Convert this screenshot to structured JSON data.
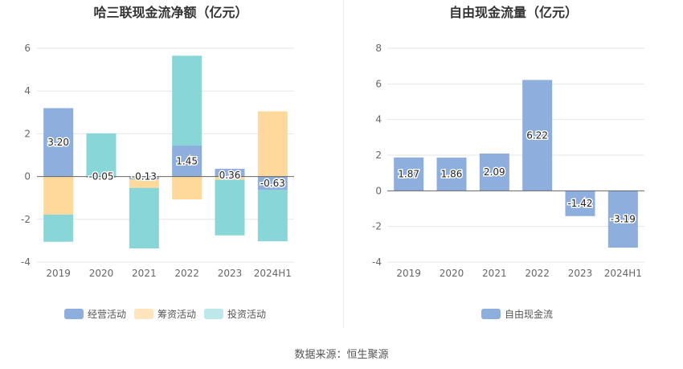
{
  "footer": {
    "source": "数据来源：恒生聚源"
  },
  "chart_data": [
    {
      "type": "bar",
      "stacked": true,
      "title": "哈三联现金流净额（亿元）",
      "categories": [
        "2019",
        "2020",
        "2021",
        "2022",
        "2023",
        "2024H1"
      ],
      "ylim": [
        -4,
        6
      ],
      "yticks": [
        6,
        4,
        2,
        0,
        -2,
        -4
      ],
      "grid": true,
      "legend_position": "bottom",
      "series": [
        {
          "name": "经营活动",
          "color": "#8eaedd",
          "values": [
            3.2,
            -0.05,
            -0.13,
            1.45,
            0.36,
            -0.63
          ],
          "labels": [
            "3.20",
            "-0.05",
            "-0.13",
            "1.45",
            "0.36",
            "-0.63"
          ]
        },
        {
          "name": "筹资活动",
          "color": "#ffd99b",
          "values": [
            -1.78,
            0.0,
            -0.4,
            -1.07,
            -0.15,
            3.05
          ]
        },
        {
          "name": "投资活动",
          "color": "#89d6d8",
          "values": [
            -1.27,
            2.02,
            -2.83,
            4.2,
            -2.6,
            -2.4
          ]
        }
      ]
    },
    {
      "type": "bar",
      "title": "自由现金流量（亿元）",
      "categories": [
        "2019",
        "2020",
        "2021",
        "2022",
        "2023",
        "2024H1"
      ],
      "ylim": [
        -4,
        8
      ],
      "yticks": [
        8,
        6,
        4,
        2,
        0,
        -2,
        -4
      ],
      "grid": true,
      "legend_position": "bottom",
      "series": [
        {
          "name": "自由现金流",
          "color": "#8eaedd",
          "values": [
            1.87,
            1.86,
            2.09,
            6.22,
            -1.42,
            -3.19
          ],
          "labels": [
            "1.87",
            "1.86",
            "2.09",
            "6.22",
            "-1.42",
            "-3.19"
          ]
        }
      ]
    }
  ]
}
